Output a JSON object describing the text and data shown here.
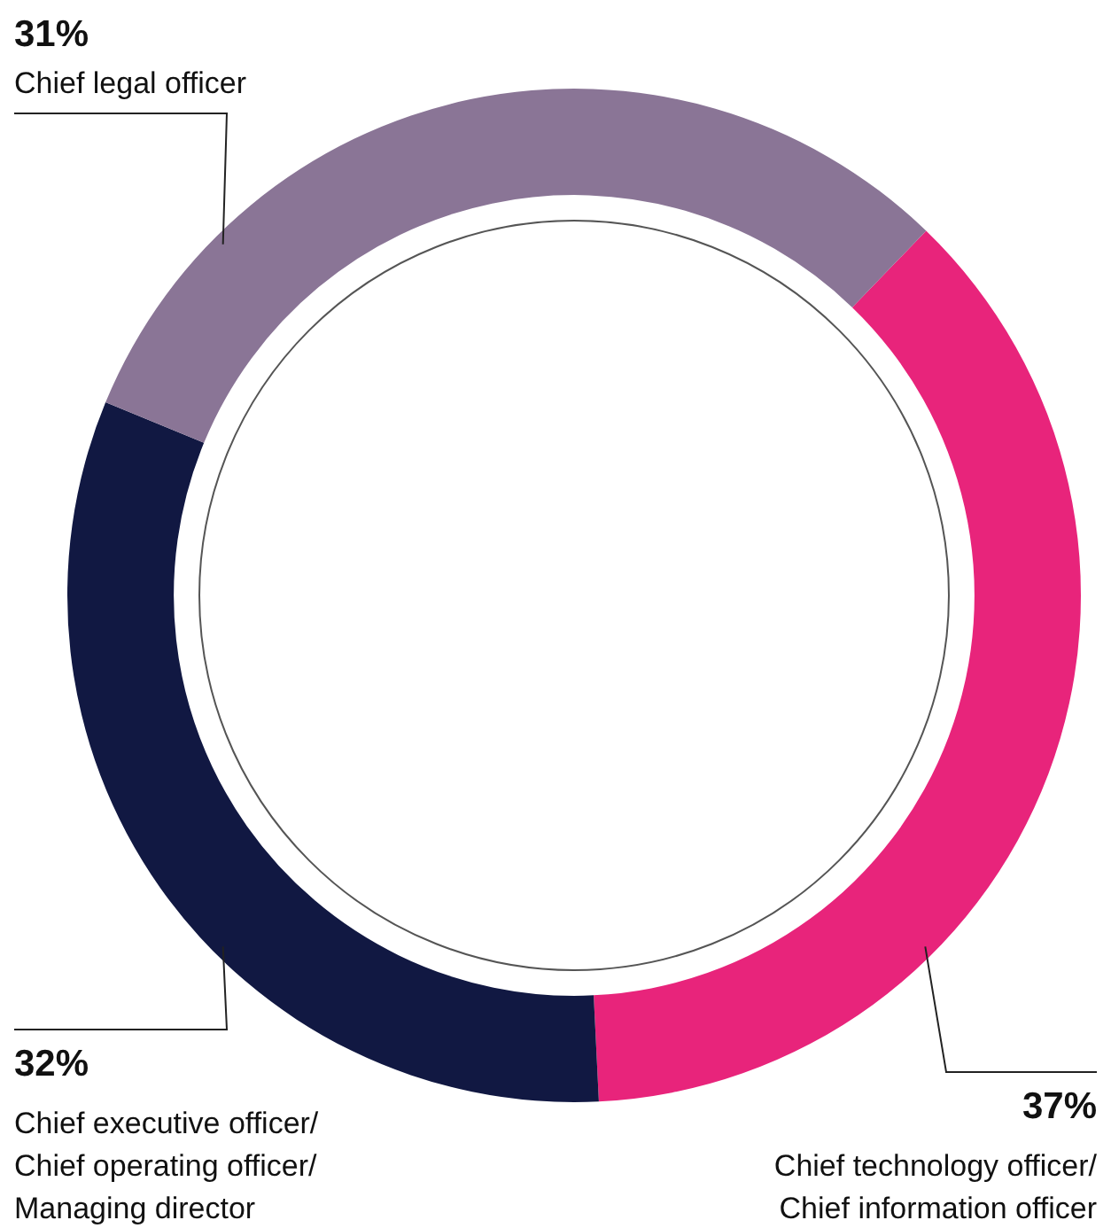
{
  "chart_data": {
    "type": "donut",
    "categories": [
      "Chief technology officer/\nChief information officer",
      "Chief executive officer/\nChief operating officer/\nManaging director",
      "Chief legal officer"
    ],
    "values": [
      37,
      32,
      31
    ],
    "value_labels": [
      "37%",
      "32%",
      "31%"
    ],
    "colors": [
      "#e8247b",
      "#111842",
      "#8a7596"
    ],
    "legend": false
  }
}
